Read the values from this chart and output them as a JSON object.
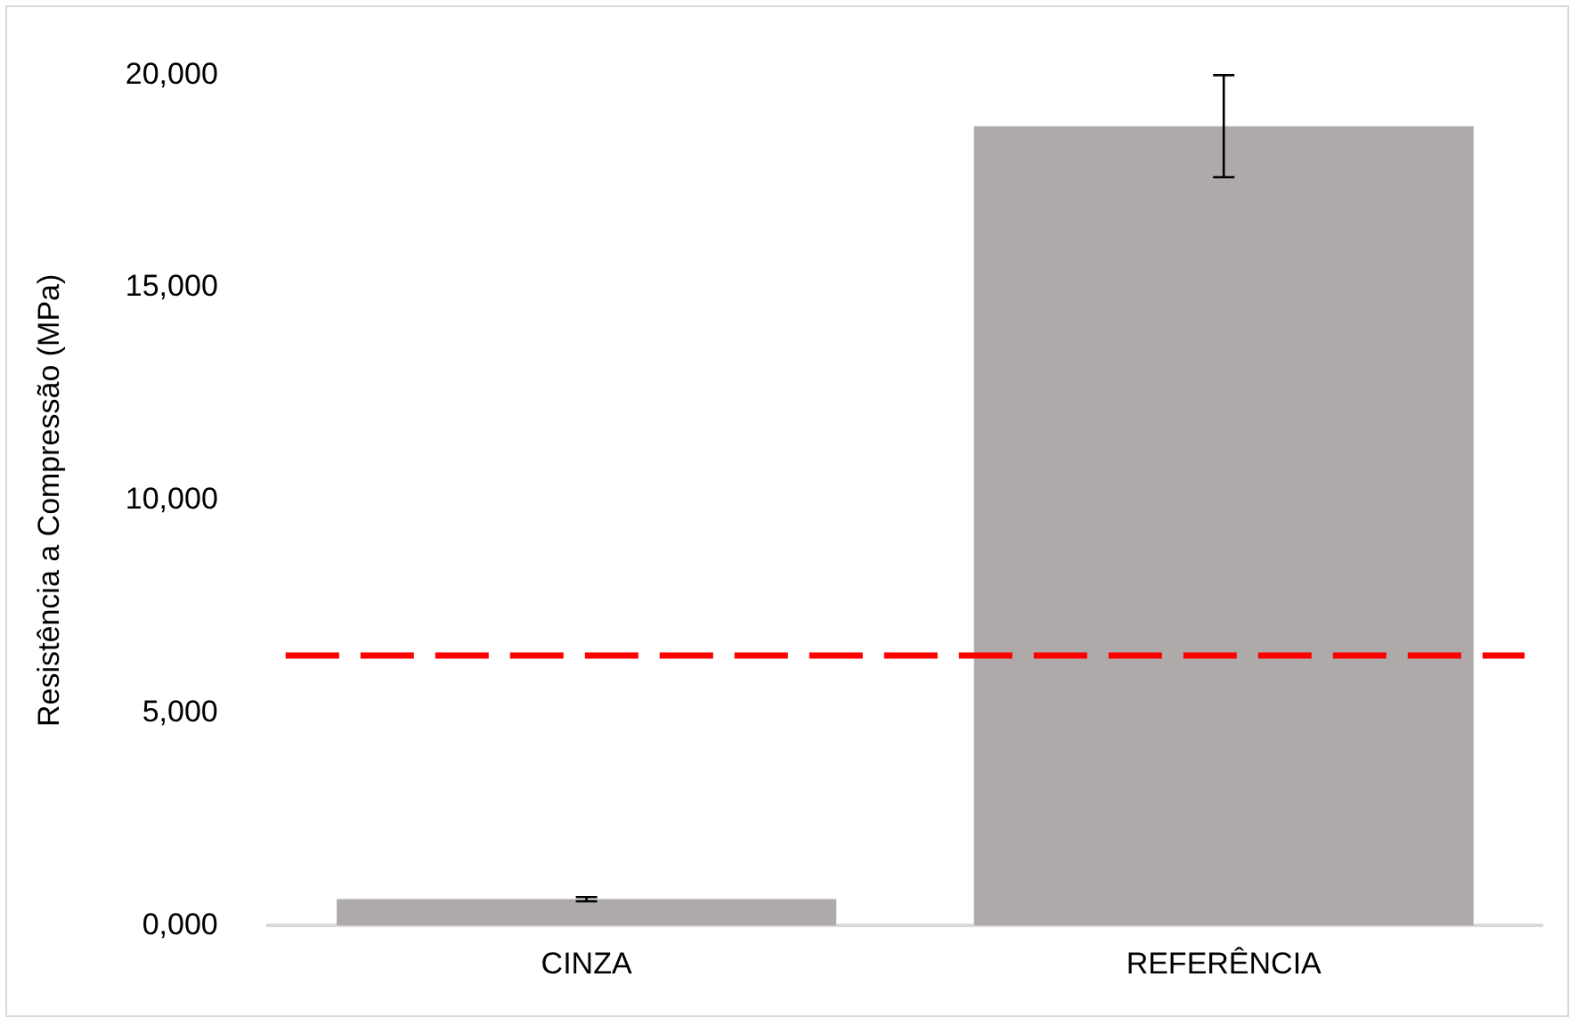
{
  "chart_data": {
    "type": "bar",
    "ylabel": "Resistência a Compressão (MPa)",
    "categories": [
      "CINZA",
      "REFERÊNCIA"
    ],
    "values": [
      620,
      18800
    ],
    "errors": [
      50,
      1200
    ],
    "color": "#aeaaaa",
    "ylim": [
      0,
      20000
    ],
    "yticks": [
      {
        "value": 0,
        "label": "0,000"
      },
      {
        "value": 5000,
        "label": "5,000"
      },
      {
        "value": 10000,
        "label": "10,000"
      },
      {
        "value": 15000,
        "label": "15,000"
      },
      {
        "value": 20000,
        "label": "20,000"
      }
    ],
    "grid": false,
    "legend": false,
    "ref_lines": [
      {
        "axis": "y",
        "value": 6350,
        "label": null,
        "color": "#ff0000",
        "line_style": "dashed"
      }
    ]
  }
}
